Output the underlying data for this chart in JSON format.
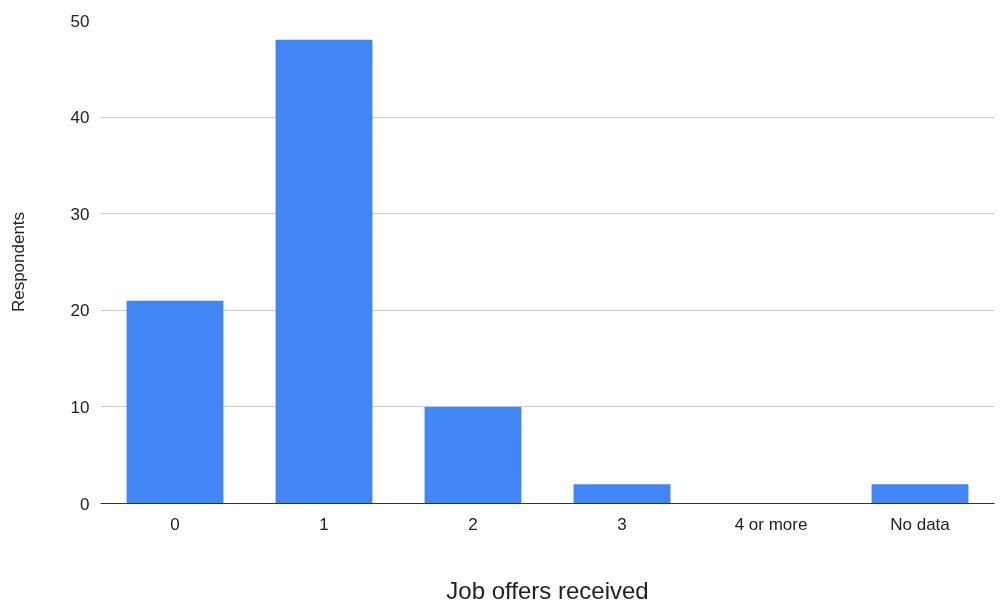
{
  "chart_data": {
    "type": "bar",
    "xlabel": "Job offers received",
    "ylabel": "Respondents",
    "categories": [
      "0",
      "1",
      "2",
      "3",
      "4 or more",
      "No data"
    ],
    "values": [
      21,
      48,
      10,
      2,
      0,
      2
    ],
    "color": "#4285f4",
    "ylim": [
      0,
      50
    ],
    "yticks": [
      0,
      10,
      20,
      30,
      40,
      50
    ],
    "grid": "y"
  }
}
